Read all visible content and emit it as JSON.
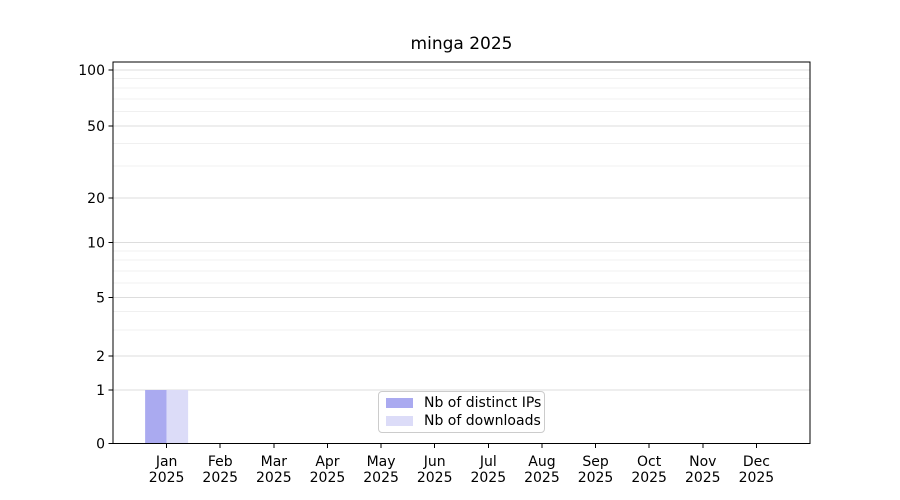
{
  "chart_data": {
    "type": "bar",
    "title": "minga 2025",
    "categories": [
      {
        "month": "Jan",
        "year": "2025"
      },
      {
        "month": "Feb",
        "year": "2025"
      },
      {
        "month": "Mar",
        "year": "2025"
      },
      {
        "month": "Apr",
        "year": "2025"
      },
      {
        "month": "May",
        "year": "2025"
      },
      {
        "month": "Jun",
        "year": "2025"
      },
      {
        "month": "Jul",
        "year": "2025"
      },
      {
        "month": "Aug",
        "year": "2025"
      },
      {
        "month": "Sep",
        "year": "2025"
      },
      {
        "month": "Oct",
        "year": "2025"
      },
      {
        "month": "Nov",
        "year": "2025"
      },
      {
        "month": "Dec",
        "year": "2025"
      }
    ],
    "series": [
      {
        "name": "Nb of distinct IPs",
        "color": "#aaaaf0",
        "values": [
          1,
          0,
          0,
          0,
          0,
          0,
          0,
          0,
          0,
          0,
          0,
          0
        ]
      },
      {
        "name": "Nb of downloads",
        "color": "#dcdcf8",
        "values": [
          1,
          0,
          0,
          0,
          0,
          0,
          0,
          0,
          0,
          0,
          0,
          0
        ]
      }
    ],
    "xlabel": "",
    "ylabel": "",
    "y_axis": {
      "scale": "symlog",
      "major_ticks": [
        0,
        1,
        2,
        5,
        10,
        20,
        50,
        100
      ],
      "minor_ticks": [
        3,
        4,
        6,
        7,
        8,
        9,
        30,
        40,
        60,
        70,
        80,
        90
      ],
      "ylim": [
        0,
        112
      ]
    },
    "grid": {
      "enabled": true,
      "major_color": "#dddddd",
      "minor_color": "#f0f0f0"
    },
    "legend": {
      "position": "lower center",
      "background": "#ffffff",
      "border_color": "#cccccc"
    },
    "colors": {
      "axis": "#000000",
      "text": "#000000",
      "background": "#ffffff"
    }
  }
}
